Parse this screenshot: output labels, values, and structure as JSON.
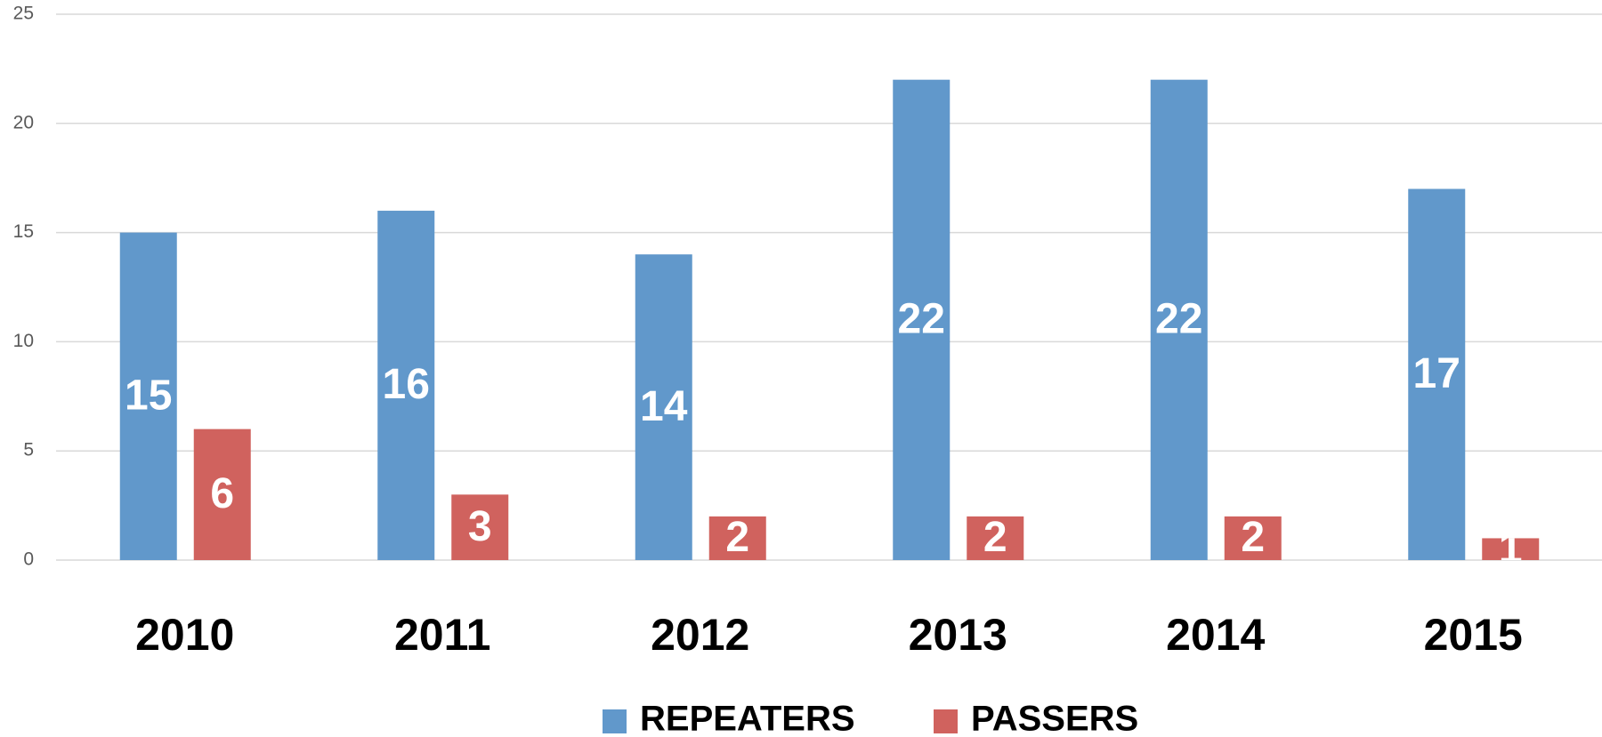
{
  "chart_data": {
    "type": "bar",
    "categories": [
      "2010",
      "2011",
      "2012",
      "2013",
      "2014",
      "2015"
    ],
    "series": [
      {
        "name": "REPEATERS",
        "color": "#6198cb",
        "values": [
          15,
          16,
          14,
          22,
          22,
          17
        ]
      },
      {
        "name": "PASSERS",
        "color": "#d0625e",
        "values": [
          6,
          3,
          2,
          2,
          2,
          1
        ]
      }
    ],
    "ylim": [
      0,
      25
    ],
    "yticks": [
      0,
      5,
      10,
      15,
      20,
      25
    ],
    "grid": true,
    "legend": "bottom"
  }
}
